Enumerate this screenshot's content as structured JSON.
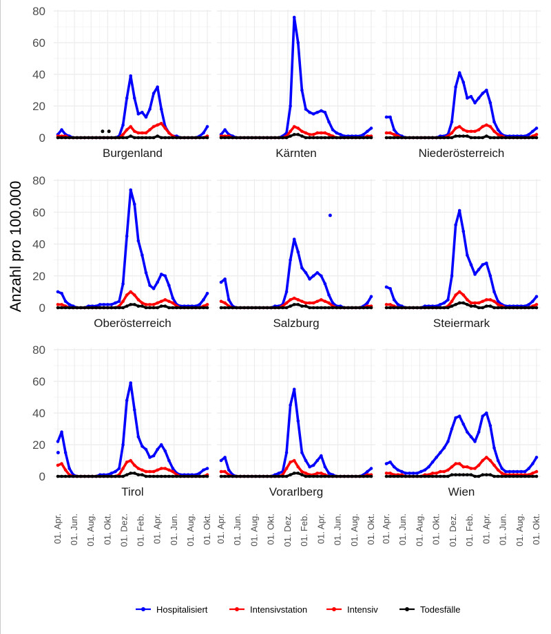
{
  "chart_data": {
    "type": "line",
    "ylabel": "Anzahl pro 100.000",
    "ylim": [
      0,
      80
    ],
    "yticks": [
      0,
      20,
      40,
      60,
      80
    ],
    "x_tick_labels": [
      "01. Apr.",
      "01. Jun.",
      "01. Aug.",
      "01. Okt.",
      "01. Dez.",
      "01. Feb.",
      "01. Apr.",
      "01. Jun.",
      "01. Aug.",
      "01. Okt."
    ],
    "x_period": "2020-03 to 2021-10 (daily)",
    "grid": true,
    "legend_position": "bottom",
    "series_meta": [
      {
        "name": "Hospitalisiert",
        "color": "#0000ff"
      },
      {
        "name": "Intensivstation",
        "color": "#ff0000"
      },
      {
        "name": "Intensiv",
        "color": "#ff0000"
      },
      {
        "name": "Todesfälle",
        "color": "#000000"
      }
    ],
    "x": [
      0,
      15,
      30,
      45,
      60,
      75,
      90,
      105,
      120,
      135,
      150,
      165,
      180,
      195,
      210,
      225,
      240,
      255,
      270,
      285,
      300,
      315,
      330,
      345,
      360,
      375,
      390,
      405,
      420,
      435,
      450,
      465,
      480,
      495,
      510,
      525,
      540,
      555,
      570,
      585
    ],
    "x_unit": "days after 2020-03-01",
    "panels": [
      {
        "name": "Burgenland",
        "hosp": [
          2,
          5,
          2,
          1,
          0,
          0,
          0,
          0,
          0,
          0,
          0,
          0,
          0,
          0,
          0,
          0,
          1,
          8,
          25,
          39,
          25,
          15,
          16,
          13,
          18,
          28,
          32,
          18,
          7,
          3,
          1,
          1,
          0,
          0,
          0,
          0,
          0,
          1,
          3,
          7
        ],
        "icu": [
          1,
          1,
          1,
          0,
          0,
          0,
          0,
          0,
          0,
          0,
          0,
          0,
          0,
          0,
          0,
          0,
          0,
          2,
          5,
          7,
          4,
          3,
          3,
          3,
          5,
          7,
          8,
          9,
          6,
          3,
          1,
          0,
          0,
          0,
          0,
          0,
          0,
          0,
          0,
          1
        ],
        "deaths": [
          0,
          0,
          0,
          0,
          0,
          0,
          0,
          0,
          0,
          0,
          0,
          0,
          0,
          0,
          0,
          0,
          0,
          0,
          0,
          1,
          0,
          0,
          0,
          0,
          0,
          0,
          1,
          0,
          0,
          0,
          0,
          0,
          0,
          0,
          0,
          0,
          0,
          0,
          0,
          0
        ],
        "extra_points": [
          [
            175,
            4
          ],
          [
            200,
            4
          ]
        ]
      },
      {
        "name": "Kärnten",
        "hosp": [
          2,
          5,
          2,
          1,
          0,
          0,
          0,
          0,
          0,
          0,
          0,
          0,
          0,
          0,
          0,
          0,
          1,
          3,
          20,
          76,
          60,
          30,
          18,
          16,
          15,
          16,
          17,
          16,
          10,
          5,
          3,
          2,
          1,
          1,
          1,
          1,
          1,
          2,
          4,
          6
        ],
        "icu": [
          1,
          1,
          1,
          0,
          0,
          0,
          0,
          0,
          0,
          0,
          0,
          0,
          0,
          0,
          0,
          0,
          0,
          1,
          4,
          7,
          6,
          4,
          3,
          2,
          2,
          3,
          3,
          3,
          2,
          1,
          0,
          0,
          0,
          0,
          0,
          0,
          0,
          0,
          1,
          1
        ],
        "deaths": [
          0,
          0,
          0,
          0,
          0,
          0,
          0,
          0,
          0,
          0,
          0,
          0,
          0,
          0,
          0,
          0,
          0,
          0,
          1,
          2,
          2,
          1,
          0,
          0,
          0,
          0,
          0,
          0,
          0,
          0,
          0,
          0,
          0,
          0,
          0,
          0,
          0,
          0,
          0,
          0
        ],
        "extra_points": []
      },
      {
        "name": "Niederösterreich",
        "hosp": [
          13,
          13,
          5,
          2,
          1,
          0,
          0,
          0,
          0,
          0,
          0,
          0,
          0,
          0,
          1,
          1,
          2,
          10,
          32,
          41,
          35,
          25,
          26,
          22,
          25,
          28,
          30,
          22,
          10,
          5,
          2,
          1,
          1,
          1,
          1,
          1,
          1,
          2,
          4,
          6
        ],
        "icu": [
          3,
          3,
          2,
          1,
          0,
          0,
          0,
          0,
          0,
          0,
          0,
          0,
          0,
          0,
          0,
          0,
          1,
          3,
          6,
          7,
          5,
          4,
          4,
          4,
          5,
          7,
          8,
          7,
          4,
          2,
          1,
          0,
          0,
          0,
          0,
          0,
          0,
          0,
          1,
          2
        ],
        "deaths": [
          0,
          0,
          0,
          0,
          0,
          0,
          0,
          0,
          0,
          0,
          0,
          0,
          0,
          0,
          0,
          0,
          0,
          0,
          1,
          1,
          1,
          1,
          0,
          0,
          0,
          0,
          1,
          0,
          0,
          0,
          0,
          0,
          0,
          0,
          0,
          0,
          0,
          0,
          0,
          0
        ],
        "extra_points": []
      },
      {
        "name": "Oberösterreich",
        "hosp": [
          10,
          9,
          4,
          2,
          1,
          0,
          0,
          0,
          1,
          1,
          1,
          2,
          2,
          2,
          2,
          3,
          4,
          15,
          45,
          74,
          65,
          42,
          33,
          22,
          14,
          12,
          16,
          21,
          20,
          14,
          6,
          2,
          1,
          1,
          1,
          1,
          1,
          2,
          5,
          9
        ],
        "icu": [
          2,
          2,
          1,
          0,
          0,
          0,
          0,
          0,
          0,
          0,
          0,
          0,
          0,
          0,
          0,
          0,
          1,
          4,
          8,
          10,
          8,
          5,
          3,
          2,
          2,
          2,
          3,
          4,
          5,
          4,
          3,
          1,
          0,
          0,
          0,
          0,
          0,
          0,
          1,
          2
        ],
        "deaths": [
          0,
          0,
          0,
          0,
          0,
          0,
          0,
          0,
          0,
          0,
          0,
          0,
          0,
          0,
          0,
          0,
          0,
          0,
          1,
          2,
          2,
          1,
          1,
          0,
          0,
          0,
          0,
          1,
          1,
          0,
          0,
          0,
          0,
          0,
          0,
          0,
          0,
          0,
          0,
          0
        ],
        "extra_points": []
      },
      {
        "name": "Salzburg",
        "hosp": [
          16,
          18,
          5,
          1,
          0,
          0,
          0,
          0,
          0,
          0,
          0,
          0,
          0,
          0,
          1,
          1,
          2,
          10,
          30,
          43,
          35,
          25,
          22,
          18,
          20,
          22,
          20,
          15,
          8,
          3,
          1,
          1,
          0,
          0,
          0,
          0,
          0,
          1,
          3,
          7
        ],
        "icu": [
          4,
          3,
          1,
          0,
          0,
          0,
          0,
          0,
          0,
          0,
          0,
          0,
          0,
          0,
          0,
          0,
          1,
          3,
          5,
          6,
          5,
          4,
          3,
          3,
          3,
          4,
          5,
          4,
          3,
          1,
          0,
          0,
          0,
          0,
          0,
          0,
          0,
          0,
          1,
          1
        ],
        "deaths": [
          0,
          0,
          0,
          0,
          0,
          0,
          0,
          0,
          0,
          0,
          0,
          0,
          0,
          0,
          0,
          0,
          0,
          0,
          1,
          2,
          2,
          1,
          1,
          0,
          0,
          0,
          0,
          0,
          0,
          0,
          0,
          0,
          0,
          0,
          0,
          0,
          0,
          0,
          0,
          0
        ],
        "extra_points": [
          [
            425,
            58
          ]
        ]
      },
      {
        "name": "Steiermark",
        "hosp": [
          13,
          12,
          5,
          2,
          1,
          0,
          0,
          0,
          0,
          0,
          1,
          1,
          1,
          1,
          2,
          3,
          5,
          20,
          52,
          61,
          48,
          33,
          27,
          21,
          24,
          27,
          28,
          20,
          10,
          4,
          2,
          1,
          1,
          1,
          1,
          1,
          1,
          2,
          4,
          7
        ],
        "icu": [
          2,
          2,
          1,
          0,
          0,
          0,
          0,
          0,
          0,
          0,
          0,
          0,
          0,
          0,
          0,
          0,
          1,
          4,
          8,
          10,
          8,
          5,
          3,
          3,
          3,
          4,
          5,
          5,
          4,
          2,
          1,
          0,
          0,
          0,
          0,
          0,
          0,
          0,
          1,
          2
        ],
        "deaths": [
          0,
          0,
          0,
          0,
          0,
          0,
          0,
          0,
          0,
          0,
          0,
          0,
          0,
          0,
          0,
          0,
          0,
          1,
          2,
          3,
          3,
          2,
          1,
          1,
          0,
          0,
          1,
          1,
          0,
          0,
          0,
          0,
          0,
          0,
          0,
          0,
          0,
          0,
          0,
          0
        ],
        "extra_points": []
      },
      {
        "name": "Tirol",
        "hosp": [
          22,
          28,
          15,
          5,
          1,
          0,
          0,
          0,
          0,
          0,
          0,
          1,
          1,
          1,
          2,
          3,
          5,
          20,
          48,
          59,
          42,
          25,
          19,
          17,
          12,
          13,
          17,
          20,
          16,
          10,
          5,
          2,
          1,
          1,
          1,
          1,
          1,
          2,
          4,
          5
        ],
        "icu": [
          7,
          8,
          4,
          1,
          0,
          0,
          0,
          0,
          0,
          0,
          0,
          0,
          0,
          0,
          0,
          0,
          1,
          5,
          9,
          10,
          7,
          5,
          4,
          3,
          3,
          3,
          4,
          5,
          5,
          4,
          3,
          1,
          0,
          0,
          0,
          0,
          0,
          0,
          0,
          1
        ],
        "deaths": [
          0,
          0,
          0,
          0,
          0,
          0,
          0,
          0,
          0,
          0,
          0,
          0,
          0,
          0,
          0,
          0,
          0,
          0,
          1,
          2,
          2,
          1,
          1,
          0,
          0,
          0,
          0,
          0,
          0,
          0,
          0,
          0,
          0,
          0,
          0,
          0,
          0,
          0,
          0,
          0
        ],
        "extra_points": [
          [
            1,
            15
          ]
        ]
      },
      {
        "name": "Vorarlberg",
        "hosp": [
          10,
          12,
          4,
          1,
          0,
          0,
          0,
          0,
          0,
          0,
          0,
          0,
          0,
          0,
          1,
          2,
          3,
          15,
          45,
          55,
          35,
          15,
          10,
          6,
          7,
          10,
          13,
          6,
          2,
          1,
          0,
          0,
          0,
          0,
          0,
          0,
          0,
          1,
          3,
          5
        ],
        "icu": [
          3,
          3,
          1,
          0,
          0,
          0,
          0,
          0,
          0,
          0,
          0,
          0,
          0,
          0,
          0,
          0,
          1,
          5,
          9,
          10,
          6,
          3,
          2,
          1,
          1,
          2,
          2,
          1,
          0,
          0,
          0,
          0,
          0,
          0,
          0,
          0,
          0,
          0,
          1,
          1
        ],
        "deaths": [
          0,
          0,
          0,
          0,
          0,
          0,
          0,
          0,
          0,
          0,
          0,
          0,
          0,
          0,
          0,
          0,
          0,
          0,
          1,
          2,
          2,
          1,
          0,
          0,
          0,
          0,
          0,
          0,
          0,
          0,
          0,
          0,
          0,
          0,
          0,
          0,
          0,
          0,
          0,
          0
        ],
        "extra_points": []
      },
      {
        "name": "Wien",
        "hosp": [
          8,
          9,
          6,
          4,
          3,
          2,
          2,
          2,
          2,
          3,
          4,
          6,
          9,
          12,
          15,
          18,
          22,
          30,
          37,
          38,
          33,
          28,
          25,
          22,
          28,
          38,
          40,
          32,
          18,
          10,
          5,
          3,
          3,
          3,
          3,
          3,
          3,
          5,
          8,
          12
        ],
        "icu": [
          2,
          2,
          1,
          1,
          1,
          0,
          0,
          0,
          0,
          0,
          1,
          1,
          2,
          2,
          3,
          3,
          4,
          6,
          8,
          8,
          6,
          6,
          5,
          5,
          7,
          10,
          12,
          10,
          7,
          4,
          2,
          1,
          1,
          1,
          1,
          1,
          1,
          1,
          2,
          3
        ],
        "deaths": [
          0,
          0,
          0,
          0,
          0,
          0,
          0,
          0,
          0,
          0,
          0,
          0,
          0,
          0,
          0,
          0,
          0,
          1,
          1,
          1,
          1,
          1,
          1,
          0,
          0,
          1,
          1,
          1,
          0,
          0,
          0,
          0,
          0,
          0,
          0,
          0,
          0,
          0,
          0,
          0
        ],
        "extra_points": []
      }
    ]
  }
}
